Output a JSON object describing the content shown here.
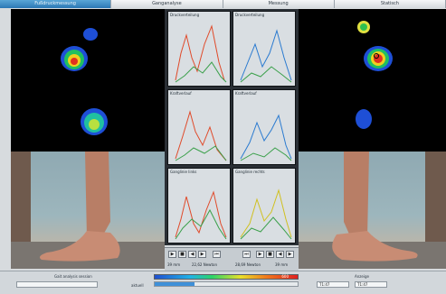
{
  "tabs": [
    "Fußdruckmessung",
    "Ganganalyse",
    "Messung",
    "Statisch"
  ],
  "graphs": [
    {
      "title": "Druckverteilung"
    },
    {
      "title": "Druckverteilung"
    },
    {
      "title": "Kraftverlauf"
    },
    {
      "title": "Kraftverlauf"
    },
    {
      "title": "Ganglinie links"
    },
    {
      "title": "Ganglinie rechts"
    }
  ],
  "controls": {
    "buttons": [
      "▶",
      "■",
      "◀",
      "▶",
      "⏮",
      "⏭",
      "▶",
      "■",
      "◀",
      "▶"
    ],
    "readouts": [
      "39 mm",
      "22,62 Newton",
      "28,69 Newton",
      "39 mm"
    ]
  },
  "statusbar": {
    "left_label": "Gait analysis session",
    "left_value": "",
    "assessment_label": "aktuell",
    "right_label": "Anzeige",
    "right_values": [
      "T1:47",
      "T1:47"
    ],
    "scale_max": "600"
  },
  "colors": {
    "accent": "#2c78b5",
    "heat_high": "#e02020"
  }
}
